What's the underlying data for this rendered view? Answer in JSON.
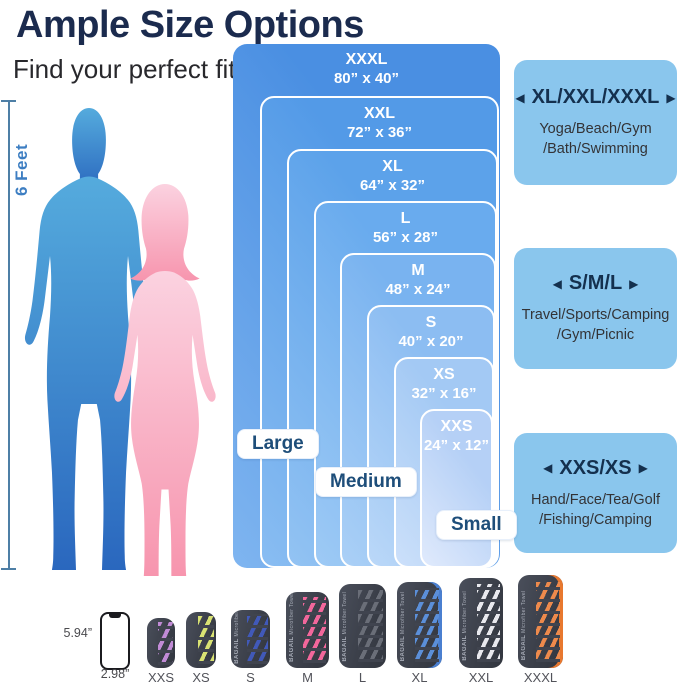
{
  "page": {
    "title": "Ample Size Options",
    "subtitle": "Find your perfect fit!"
  },
  "figure": {
    "height_label": "6 Feet",
    "male_color_top": "#55abdd",
    "male_color_bottom": "#2a67be",
    "female_color_top": "#fbd2e0",
    "female_color_bottom": "#f795ae"
  },
  "size_chart": {
    "rects": [
      {
        "name": "XXXL",
        "dims": "80”  x 40”",
        "base": "#4a8fe2",
        "light": "#7fb5f0"
      },
      {
        "name": "XXL",
        "dims": "72”  x 36”",
        "base": "#539ae7",
        "light": "#89bdf2"
      },
      {
        "name": "XL",
        "dims": "64”  x 32”",
        "base": "#5ca2ea",
        "light": "#93c3f3"
      },
      {
        "name": "L",
        "dims": "56”  x 28”",
        "base": "#69abee",
        "light": "#9ecaf5"
      },
      {
        "name": "M",
        "dims": "48”  x 24”",
        "base": "#79b3f0",
        "light": "#abd0f6"
      },
      {
        "name": "S",
        "dims": "40”  x 20”",
        "base": "#8cbdf2",
        "light": "#bbd8f8"
      },
      {
        "name": "XS",
        "dims": "32”  x 16”",
        "base": "#a3c9f4",
        "light": "#cce0fa"
      },
      {
        "name": "XXS",
        "dims": "24”  x 12”",
        "base": "#b5d0f6",
        "light": "#e0eafc"
      }
    ],
    "group_labels": [
      "Large",
      "Medium",
      "Small"
    ]
  },
  "use_boxes": [
    {
      "arrow_left": "◀",
      "arrow_right": "▶",
      "title": "XL/XXL/XXXL",
      "uses": [
        "Yoga/Beach/Gym",
        "/Bath/Swimming"
      ]
    },
    {
      "arrow_left": "◀",
      "arrow_right": "▶",
      "title": "S/M/L",
      "uses": [
        "Travel/Sports/Camping",
        "/Gym/Picnic"
      ]
    },
    {
      "arrow_left": "◀",
      "arrow_right": "▶",
      "title": "XXS/XS",
      "uses": [
        "Hand/Face/Tea/Golf",
        "/Fishing/Camping"
      ]
    }
  ],
  "scale_row": {
    "phone": {
      "height": "5.94”",
      "width": "2.98”"
    },
    "towels": [
      {
        "label": "XXS",
        "stripe_color": "#c18bd6",
        "accent_color": null
      },
      {
        "label": "XS",
        "stripe_color": "#d9e273",
        "accent_color": null
      },
      {
        "label": "S",
        "stripe_color": "#4159b8",
        "accent_color": null
      },
      {
        "label": "M",
        "stripe_color": "#f2679b",
        "accent_color": null
      },
      {
        "label": "L",
        "stripe_color": "#6a6e78",
        "accent_color": null
      },
      {
        "label": "XL",
        "stripe_color": "#5b8fd9",
        "accent_color": "#4a7fd0"
      },
      {
        "label": "XXL",
        "stripe_color": "#e9e9ee",
        "accent_color": null
      },
      {
        "label": "XXXL",
        "stripe_color": "#ee8a4c",
        "accent_color": "#e8782f"
      }
    ]
  },
  "brand": {
    "name": "BAGAIL",
    "product": "Microfiber Towel"
  },
  "colors": {
    "title_navy": "#1b2b4e",
    "use_box_blue": "#8ac6ed",
    "pill_text": "#1e4e7a",
    "measure_blue": "#3d7ec2",
    "towel_body": "#40444f"
  }
}
